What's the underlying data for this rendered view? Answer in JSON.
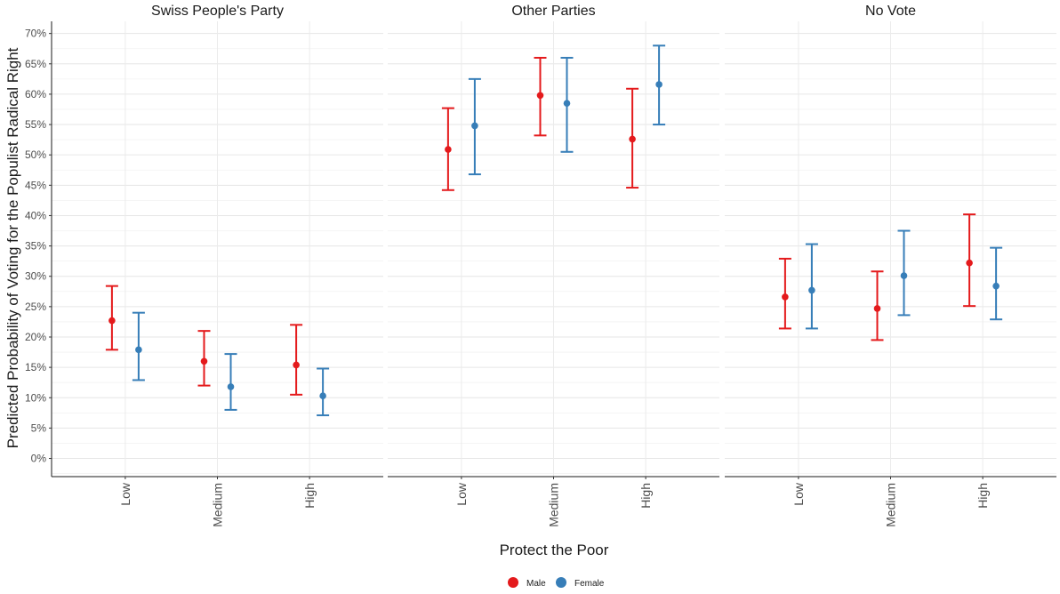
{
  "chart_data": {
    "type": "errorbar",
    "panels": [
      "Swiss People's Party",
      "Other Parties",
      "No Vote"
    ],
    "categories": [
      "Low",
      "Medium",
      "High"
    ],
    "xlabel": "Protect the Poor",
    "ylabel": "Predicted Probability of Voting for the Populist Radical Right",
    "ylim": [
      -3,
      72
    ],
    "yticks": [
      0,
      5,
      10,
      15,
      20,
      25,
      30,
      35,
      40,
      45,
      50,
      55,
      60,
      65,
      70
    ],
    "ytick_labels": [
      "0%",
      "5%",
      "10%",
      "15%",
      "20%",
      "25%",
      "30%",
      "35%",
      "40%",
      "45%",
      "50%",
      "55%",
      "60%",
      "65%",
      "70%"
    ],
    "grid": true,
    "legend_position": "bottom",
    "series": [
      {
        "name": "Male",
        "color": "#e41a1c",
        "data": [
          {
            "panel": "Swiss People's Party",
            "estimates": [
              22.7,
              16.0,
              15.4
            ],
            "lower": [
              17.9,
              12.0,
              10.5
            ],
            "upper": [
              28.4,
              21.0,
              22.0
            ]
          },
          {
            "panel": "Other Parties",
            "estimates": [
              50.9,
              59.8,
              52.6
            ],
            "lower": [
              44.2,
              53.2,
              44.6
            ],
            "upper": [
              57.7,
              66.0,
              60.9
            ]
          },
          {
            "panel": "No Vote",
            "estimates": [
              26.6,
              24.7,
              32.2
            ],
            "lower": [
              21.4,
              19.5,
              25.1
            ],
            "upper": [
              32.9,
              30.8,
              40.2
            ]
          }
        ]
      },
      {
        "name": "Female",
        "color": "#377eb8",
        "data": [
          {
            "panel": "Swiss People's Party",
            "estimates": [
              17.9,
              11.8,
              10.3
            ],
            "lower": [
              12.9,
              8.0,
              7.1
            ],
            "upper": [
              24.0,
              17.2,
              14.8
            ]
          },
          {
            "panel": "Other Parties",
            "estimates": [
              54.8,
              58.5,
              61.6
            ],
            "lower": [
              46.8,
              50.5,
              55.0
            ],
            "upper": [
              62.5,
              66.0,
              68.0
            ]
          },
          {
            "panel": "No Vote",
            "estimates": [
              27.7,
              30.1,
              28.4
            ],
            "lower": [
              21.4,
              23.6,
              22.9
            ],
            "upper": [
              35.3,
              37.5,
              34.7
            ]
          }
        ]
      }
    ]
  }
}
